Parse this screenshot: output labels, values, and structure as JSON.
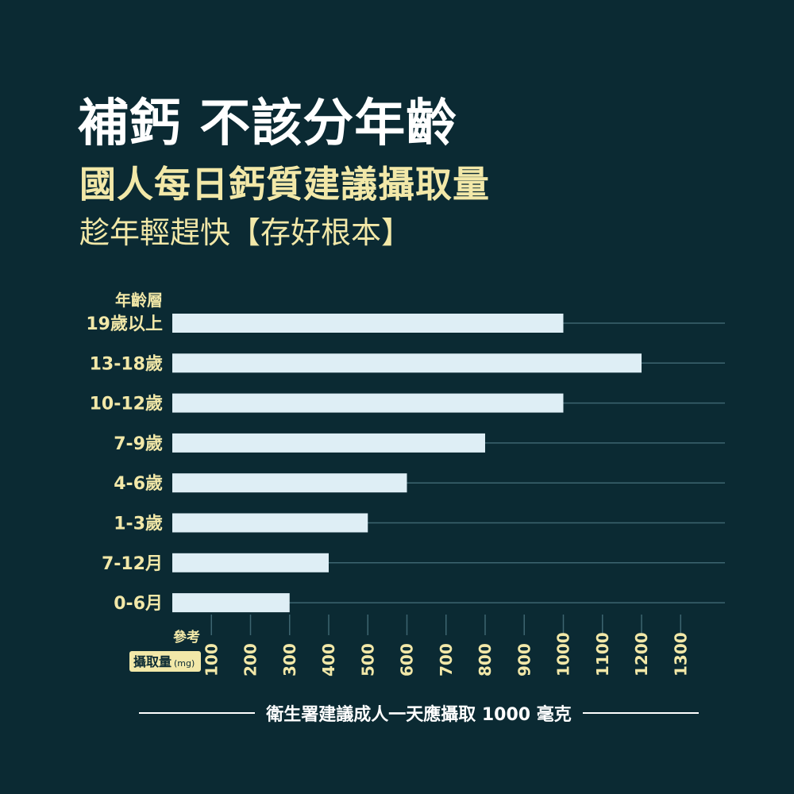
{
  "header": {
    "title": "補鈣 不該分年齡",
    "subtitle": "國人每日鈣質建議攝取量",
    "tagline": "趁年輕趕快【存好根本】"
  },
  "chart_data": {
    "type": "bar",
    "orientation": "horizontal",
    "y_axis_title": "年齡層",
    "x_axis_title_line1": "參考",
    "x_axis_title_line2": "攝取量",
    "x_axis_unit": "(mg)",
    "categories": [
      "19歲以上",
      "13-18歲",
      "10-12歲",
      "7-9歲",
      "4-6歲",
      "1-3歲",
      "7-12月",
      "0-6月"
    ],
    "values": [
      1000,
      1200,
      1000,
      800,
      600,
      500,
      400,
      300
    ],
    "x_ticks": [
      100,
      200,
      300,
      400,
      500,
      600,
      700,
      800,
      900,
      1000,
      1100,
      1200,
      1300
    ],
    "xlim": [
      0,
      1300
    ],
    "colors": {
      "background": "#0b2a33",
      "bar": "#deeef5",
      "label": "#f2e8a8",
      "tick_text": "#f2e8a8",
      "gridline": "#3d6570"
    }
  },
  "footer": {
    "note": "衛生署建議成人一天應攝取 1000 毫克"
  }
}
